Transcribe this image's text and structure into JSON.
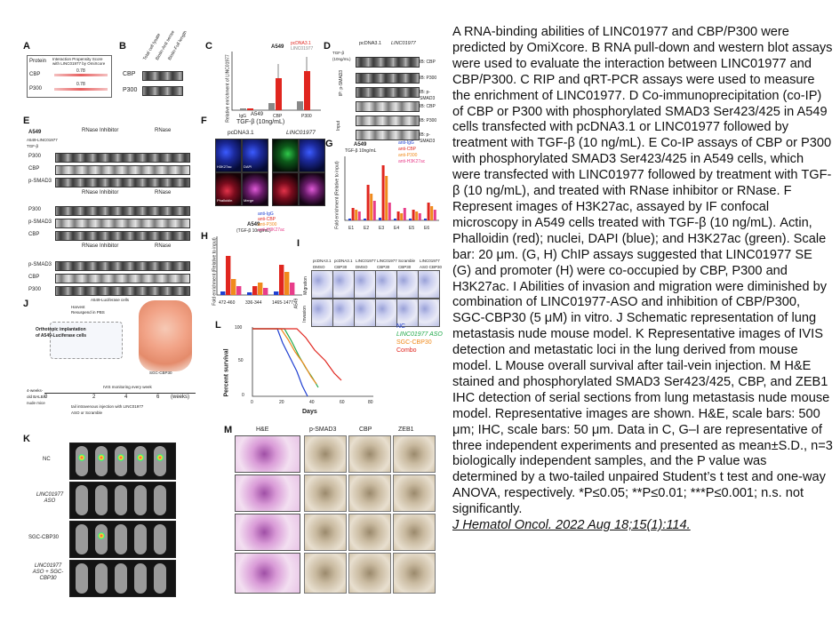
{
  "figure": {
    "panel_letters": [
      "A",
      "B",
      "C",
      "D",
      "E",
      "F",
      "G",
      "H",
      "I",
      "J",
      "K",
      "L",
      "M"
    ],
    "panelA": {
      "header_left": "Protein",
      "header_right": "Interaction Propensity Score with LINC01977 by OmiXcore",
      "rows": [
        {
          "label": "CBP",
          "score": "0.78"
        },
        {
          "label": "P300",
          "score": "0.78"
        }
      ]
    },
    "panelB": {
      "row_labels": [
        "CBP",
        "P300"
      ],
      "col_labels": [
        "Total cell lysate",
        "Biotin-Anti sense",
        "Biotin-Full length"
      ]
    },
    "panelC": {
      "title": "A549",
      "ylabel": "Relative enrichment of LINC01977",
      "categories": [
        "IgG",
        "CBP",
        "P300"
      ],
      "legend": [
        "pcDNA3.1",
        "LINC01977"
      ]
    },
    "panelD": {
      "cols": [
        "pcDNA3.1",
        "LINC01977"
      ],
      "treatment": "TGF-β (10ng/mL)",
      "ip_label": "IP: p-SMAD3",
      "input_label": "Input",
      "ib_labels": [
        "IB: CBP",
        "IB: P300",
        "IB: p-SMAD3",
        "IB: CBP",
        "IB: P300",
        "IB: p-SMAD3"
      ]
    },
    "panelE": {
      "cell": "A549",
      "header_rows": [
        "RNase Inhibitor",
        "RNase"
      ],
      "blot_rows": [
        "P300",
        "CBP",
        "p-SMAD3",
        "P300",
        "p-SMAD3",
        "CBP",
        "p-SMAD3",
        "CBP",
        "P300"
      ],
      "condition": "A549-LINC01977 TGF-β"
    },
    "panelF": {
      "title": "A549",
      "subtitle": "TGF-β (10ng/mL)",
      "cols": [
        "pcDNA3.1",
        "LINC01977"
      ],
      "channels": [
        "H3K27ac",
        "DAPI",
        "Phalloidin",
        "Merge"
      ]
    },
    "panelG": {
      "title": "A549",
      "subtitle": "TGF-β 10ng/mL",
      "ylabel": "Fold enrichment (Relative to input)",
      "categories": [
        "E1",
        "E2",
        "E3",
        "E4",
        "E5",
        "E6"
      ],
      "legend": [
        "anti-IgG",
        "anti-CBP",
        "anti-P300",
        "anti-H3K27ac"
      ]
    },
    "panelH": {
      "title": "A549",
      "subtitle": "(TGF-β 10ng/mL)",
      "ylabel": "Fold enrichment (Relative to input)",
      "categories": [
        "472-460",
        "336-344",
        "1465-1477"
      ],
      "legend": [
        "anti-IgG",
        "anti-CBP",
        "anti-P300",
        "anti-H3K27ac"
      ]
    },
    "panelI": {
      "cols": [
        "pcDNA3.1 DMSO",
        "pcDNA3.1 CBP30",
        "LINC01977 DMSO",
        "LINC01977 CBP30",
        "Scramble CBP30",
        "LINC01977 ASO CBP30"
      ],
      "rows": [
        "Migration",
        "Invasion"
      ],
      "side": "A549"
    },
    "panelJ": {
      "label": "Orthotopic implantation of A549-Luciferase cells",
      "steps": [
        "A549-Luciferase cells",
        "Harvest",
        "Resuspend in PBS",
        "IVIS monitoring every week",
        "4-weeks-old BALB/c nude mice",
        "tail intravenous injection with LINC01977 ASO or Scramble",
        "SGC-CBP30"
      ],
      "timeline": [
        "0",
        "2",
        "4",
        "6",
        "(weeks)"
      ]
    },
    "panelK": {
      "rows": [
        "NC",
        "LINC01977 ASO",
        "SGC-CBP30",
        "LINC01977 ASO + SGC-CBP30"
      ]
    },
    "panelL": {
      "ylabel": "Percent survival",
      "xlabel": "Days",
      "legend": [
        "NC",
        "LINC01977 ASO",
        "SGC-CBP30",
        "Combo"
      ],
      "xticks": [
        "0",
        "20",
        "40",
        "60",
        "80"
      ],
      "yticks": [
        "0",
        "50",
        "100"
      ]
    },
    "panelM": {
      "cols": [
        "H&E",
        "p-SMAD3",
        "CBP",
        "ZEB1"
      ]
    }
  },
  "caption": {
    "text": "A RNA-binding abilities of LINC01977 and CBP/P300 were predicted by OmiXcore. B RNA pull-down and western blot assays were used to evaluate the interaction between LINC01977 and CBP/P300. C RIP and qRT-PCR assays were used to measure the enrichment of LINC01977. D Co-immunoprecipitation (co-IP) of CBP or P300 with phosphorylated SMAD3 Ser423/425 in A549 cells transfected with pcDNA3.1 or LINC01977 followed by treatment with TGF-β (10 ng/mL). E Co-IP assays of CBP or P300 with phosphorylated SMAD3 Ser423/425 in A549 cells, which were transfected with LINC01977 followed by treatment with TGF-β (10 ng/mL), and treated with RNase inhibitor or RNase. F Represent images of H3K27ac, assayed by IF confocal microscopy in A549 cells treated with TGF-β (10 ng/mL). Actin, Phalloidin (red); nuclei, DAPI (blue); and H3K27ac (green). Scale bar: 20 μm. (G, H) ChIP assays suggested that LINC01977 SE (G) and promoter (H) were co-occupied by CBP, P300 and H3K27ac. I Abilities of invasion and migration were diminished by combination of LINC01977-ASO and inhibition of CBP/P300, SGC-CBP30 (5 μM) in vitro. J Schematic representation of lung metastasis nude mouse model. K Representative images of IVIS detection and metastatic loci in the lung derived from mouse model. L Mouse overall survival after tail-vein injection. M H&E stained and phosphorylated SMAD3 Ser423/425, CBP, and ZEB1 IHC detection of serial sections from lung metastasis nude mouse model. Representative images are shown. H&E, scale bars: 500 μm; IHC, scale bars: 50 μm. Data in C, G–I are representative of three independent experiments and presented as mean±S.D., n=3 biologically independent samples, and the P value was determined by a two-tailed unpaired Student’s t test and one-way ANOVA, respectively. *P≤0.05; **P≤0.01; ***P≤0.001; n.s. not significantly.",
    "citation": "J Hematol Oncol. 2022 Aug 18;15(1):114."
  },
  "colors": {
    "igg": "#1f3fd1",
    "cbp": "#e0261f",
    "p300": "#f08a1c",
    "h3k27ac": "#e83d8a",
    "nc": "#1f3fd1",
    "aso": "#20a84a",
    "sgc": "#f08a1c",
    "combo": "#e0261f"
  }
}
